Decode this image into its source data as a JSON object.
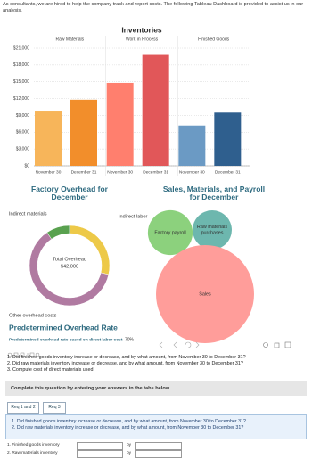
{
  "intro": "As consultants, we are hired to help the company track and report costs. The following Tableau Dashboard is provided to assist us in our analysis.",
  "chart_data": [
    {
      "type": "bar",
      "title": "Inventories",
      "panels": [
        {
          "name": "Raw Materials",
          "categories": [
            "November 30",
            "December 31"
          ],
          "values": [
            9700,
            11800
          ],
          "colors": [
            "#f7b55a",
            "#f28e2b"
          ]
        },
        {
          "name": "Work in Process",
          "categories": [
            "November 30",
            "December 31"
          ],
          "values": [
            14800,
            19800
          ],
          "colors": [
            "#ff7f6e",
            "#e15759"
          ]
        },
        {
          "name": "Finished Goods",
          "categories": [
            "November 30",
            "December 31"
          ],
          "values": [
            7200,
            9500
          ],
          "colors": [
            "#6b9ac4",
            "#2f5f8e"
          ]
        }
      ],
      "ylim": [
        0,
        21000
      ],
      "yticks": [
        {
          "value": 0,
          "label": "$0"
        },
        {
          "value": 3000,
          "label": "$3,000"
        },
        {
          "value": 6000,
          "label": "$6,000"
        },
        {
          "value": 9000,
          "label": "$9,000"
        },
        {
          "value": 12000,
          "label": "$12,000"
        },
        {
          "value": 15000,
          "label": "$15,000"
        },
        {
          "value": 18000,
          "label": "$18,000"
        },
        {
          "value": 21000,
          "label": "$21,000"
        }
      ],
      "grid": true
    },
    {
      "type": "pie",
      "title": "Factory Overhead for December",
      "categories": [
        "Indirect materials",
        "Indirect labor",
        "Other overhead costs"
      ],
      "values": [
        4000,
        12000,
        26000
      ],
      "colors": [
        "#59a14f",
        "#edc948",
        "#b07aa1"
      ],
      "center_label": "Total Overhead",
      "center_text": "$42,000"
    },
    {
      "type": "bubble",
      "title": "Sales, Materials, and Payroll for December",
      "categories": [
        "Factory payroll",
        "Raw materials purchases",
        "Sales"
      ],
      "values": [
        30000,
        23000,
        144000
      ],
      "colors": [
        "#8cd17d",
        "#6db7ae",
        "#ff9d9a"
      ]
    }
  ],
  "rate": {
    "title": "Predetermined Overhead Rate",
    "label": "Predetermined overhead rate based on direct labor cost",
    "value_text": "70%"
  },
  "questions": [
    "1. Did finished goods inventory increase or decrease, and by what amount, from November 30 to December 31?",
    "2. Did raw materials inventory increase or decrease, and by what amount, from November 30 to December 31?",
    "3. Compute cost of direct materials used."
  ],
  "instruction": "Complete this question by entering your answers in the tabs below.",
  "tabs": [
    "Req 1 and 2",
    "Req 3"
  ],
  "req_questions": [
    "1. Did finished goods inventory increase or decrease, and by what amount, from November 30 to December 31?",
    "2. Did raw materials inventory increase or decrease, and by what amount, from November 30 to December 31?"
  ],
  "table": {
    "rows": [
      {
        "label": "1. Finished goods inventory",
        "by": "by"
      },
      {
        "label": "2. Raw materials inventory",
        "by": "by"
      }
    ]
  }
}
